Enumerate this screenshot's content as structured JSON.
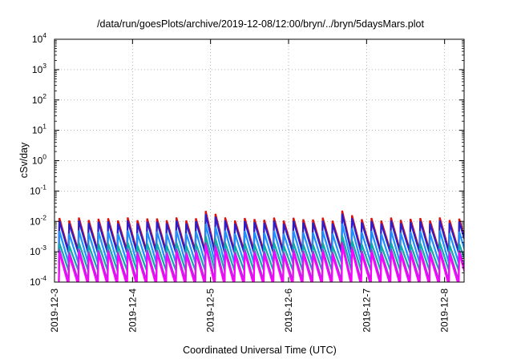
{
  "chart_data": {
    "type": "line",
    "title": "/data/run/goesPlots/archive/2019-12-08/12:00/bryn/../bryn/5daysMars.plot",
    "xlabel": "Coordinated Universal Time (UTC)",
    "ylabel": "cSv/day",
    "y_scale": "log",
    "ylim": [
      0.0001,
      10000
    ],
    "xlim": [
      "2019-12-03",
      "2019-12-08 06:00"
    ],
    "grid": true,
    "legend": "none",
    "y_ticks": [
      {
        "base": "10",
        "exp": "-4",
        "value": 0.0001
      },
      {
        "base": "10",
        "exp": "-3",
        "value": 0.001
      },
      {
        "base": "10",
        "exp": "-2",
        "value": 0.01
      },
      {
        "base": "10",
        "exp": "-1",
        "value": 0.1
      },
      {
        "base": "10",
        "exp": "0",
        "value": 1
      },
      {
        "base": "10",
        "exp": "1",
        "value": 10
      },
      {
        "base": "10",
        "exp": "2",
        "value": 100
      },
      {
        "base": "10",
        "exp": "3",
        "value": 1000
      },
      {
        "base": "10",
        "exp": "4",
        "value": 10000
      }
    ],
    "x_ticks": [
      "2019-12-3",
      "2019-12-4",
      "2019-12-5",
      "2019-12-6",
      "2019-12-7",
      "2019-12-8"
    ],
    "series_pattern": {
      "shape": "sawtooth",
      "cycle_hours": 3,
      "phase_hours": 1.5,
      "note_peak_rise": "sharp rise, slow decay",
      "series": [
        {
          "color": "#dd1010",
          "peak": 0.012,
          "trough": 0.0012
        },
        {
          "color": "#2a1fd0",
          "peak": 0.0095,
          "trough": 0.00085
        },
        {
          "color": "#1e90ff",
          "peak": 0.0045,
          "trough": 0.00048
        },
        {
          "color": "#11aaaa",
          "peak": 0.0018,
          "trough": 0.00022
        },
        {
          "color": "#9a3bd6",
          "peak": 0.0011,
          "trough": 0.00012
        },
        {
          "color": "#ff00ff",
          "peak": 0.0009,
          "trough": 7e-05
        }
      ],
      "enhanced_peaks": [
        {
          "time": "2019-12-04 22:30",
          "factor": 1.8
        },
        {
          "time": "2019-12-05 01:30",
          "factor": 1.6
        },
        {
          "time": "2019-12-06 16:30",
          "factor": 1.7
        },
        {
          "time": "2019-12-06 19:30",
          "factor": 1.4
        }
      ]
    }
  }
}
